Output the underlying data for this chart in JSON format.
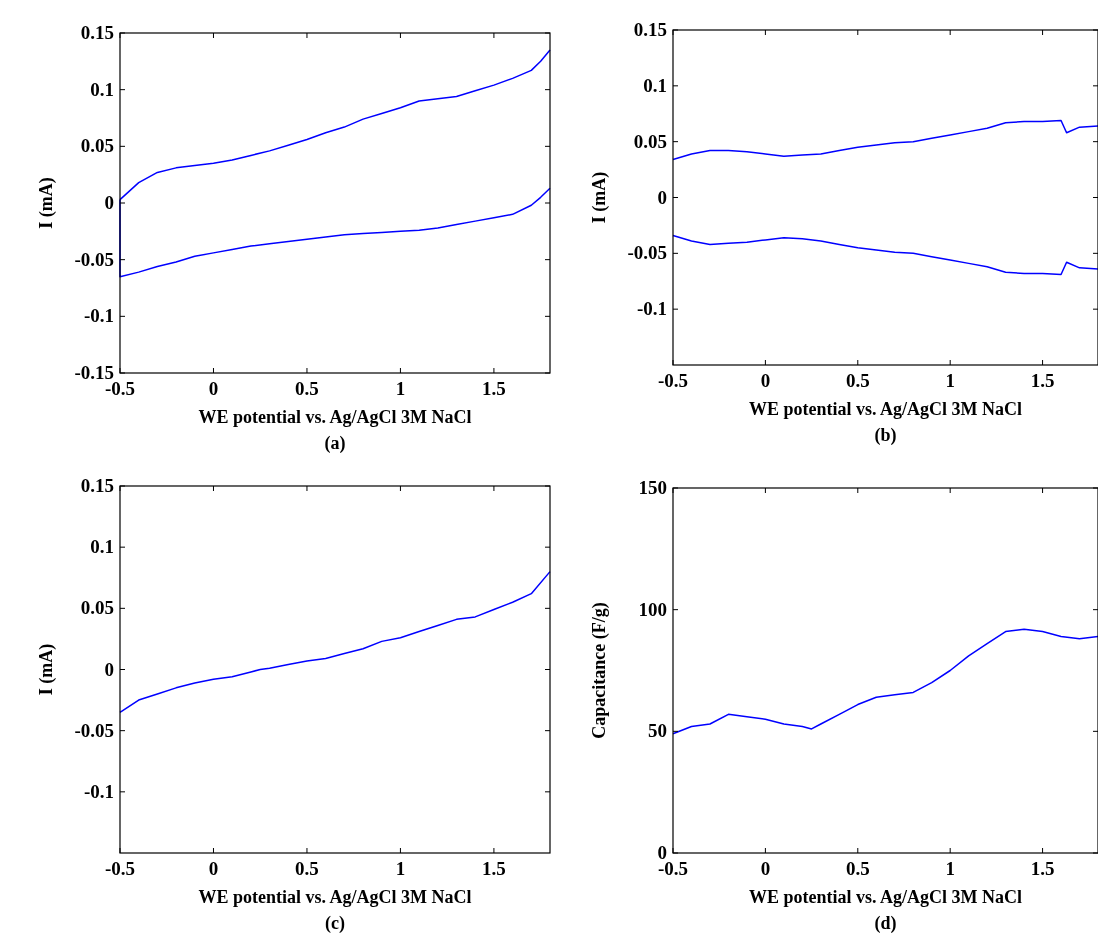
{
  "chart_data": [
    {
      "type": "line",
      "xlabel": "WE potential vs. Ag/AgCl 3M NaCl",
      "ylabel": "I (mA)",
      "annotations": [
        "(a)"
      ],
      "xlim": [
        -0.5,
        1.8
      ],
      "xticks": [
        -0.5,
        0,
        0.5,
        1,
        1.5
      ],
      "ylim": [
        -0.15,
        0.15
      ],
      "yticks": [
        -0.15,
        -0.1,
        -0.05,
        0,
        0.05,
        0.1,
        0.15
      ],
      "grid": false,
      "series": [
        {
          "color": "#0000ff",
          "x": [
            -0.5,
            -0.4,
            -0.3,
            -0.2,
            -0.1,
            0,
            0.1,
            0.2,
            0.3,
            0.4,
            0.5,
            0.6,
            0.7,
            0.8,
            0.9,
            1.0,
            1.1,
            1.2,
            1.3,
            1.4,
            1.5,
            1.6,
            1.7,
            1.75,
            1.8
          ],
          "values": [
            0.003,
            0.018,
            0.027,
            0.031,
            0.033,
            0.035,
            0.038,
            0.042,
            0.046,
            0.051,
            0.056,
            0.062,
            0.067,
            0.074,
            0.079,
            0.084,
            0.09,
            0.092,
            0.094,
            0.099,
            0.104,
            0.11,
            0.117,
            0.125,
            0.135
          ]
        },
        {
          "color": "#0000ff",
          "x": [
            -0.5,
            -0.5,
            -0.4,
            -0.3,
            -0.2,
            -0.1,
            0,
            0.1,
            0.2,
            0.3,
            0.4,
            0.5,
            0.6,
            0.7,
            0.8,
            0.9,
            1.0,
            1.1,
            1.2,
            1.3,
            1.4,
            1.5,
            1.6,
            1.7,
            1.75,
            1.8
          ],
          "values": [
            0.003,
            -0.065,
            -0.061,
            -0.056,
            -0.052,
            -0.047,
            -0.044,
            -0.041,
            -0.038,
            -0.036,
            -0.034,
            -0.032,
            -0.03,
            -0.028,
            -0.027,
            -0.026,
            -0.025,
            -0.024,
            -0.022,
            -0.019,
            -0.016,
            -0.013,
            -0.01,
            -0.002,
            0.005,
            0.013
          ]
        }
      ]
    },
    {
      "type": "line",
      "xlabel": "WE potential vs. Ag/AgCl 3M NaCl",
      "ylabel": "I (mA)",
      "annotations": [
        "(b)"
      ],
      "xlim": [
        -0.5,
        1.8
      ],
      "xticks": [
        -0.5,
        0,
        0.5,
        1,
        1.5
      ],
      "ylim": [
        -0.15,
        0.15
      ],
      "yticks": [
        -0.1,
        -0.05,
        0,
        0.05,
        0.1,
        0.15
      ],
      "grid": false,
      "series": [
        {
          "color": "#0000ff",
          "x": [
            -0.5,
            -0.4,
            -0.3,
            -0.2,
            -0.1,
            0,
            0.1,
            0.2,
            0.3,
            0.4,
            0.5,
            0.6,
            0.7,
            0.8,
            0.9,
            1.0,
            1.1,
            1.2,
            1.3,
            1.4,
            1.5,
            1.6,
            1.63,
            1.7,
            1.8
          ],
          "values": [
            0.034,
            0.039,
            0.042,
            0.042,
            0.041,
            0.039,
            0.037,
            0.038,
            0.039,
            0.042,
            0.045,
            0.047,
            0.049,
            0.05,
            0.053,
            0.056,
            0.059,
            0.062,
            0.067,
            0.068,
            0.068,
            0.069,
            0.058,
            0.063,
            0.064
          ]
        },
        {
          "color": "#0000ff",
          "x": [
            -0.5,
            -0.4,
            -0.3,
            -0.2,
            -0.1,
            0,
            0.1,
            0.2,
            0.3,
            0.4,
            0.5,
            0.6,
            0.7,
            0.8,
            0.9,
            1.0,
            1.1,
            1.2,
            1.3,
            1.4,
            1.5,
            1.6,
            1.63,
            1.7,
            1.8
          ],
          "values": [
            -0.034,
            -0.039,
            -0.042,
            -0.041,
            -0.04,
            -0.038,
            -0.036,
            -0.037,
            -0.039,
            -0.042,
            -0.045,
            -0.047,
            -0.049,
            -0.05,
            -0.053,
            -0.056,
            -0.059,
            -0.062,
            -0.067,
            -0.068,
            -0.068,
            -0.069,
            -0.058,
            -0.063,
            -0.064
          ]
        }
      ]
    },
    {
      "type": "line",
      "xlabel": "WE potential vs. Ag/AgCl 3M NaCl",
      "ylabel": "I (mA)",
      "annotations": [
        "(c)"
      ],
      "xlim": [
        -0.5,
        1.8
      ],
      "xticks": [
        -0.5,
        0,
        0.5,
        1,
        1.5
      ],
      "ylim": [
        -0.15,
        0.15
      ],
      "yticks": [
        -0.1,
        -0.05,
        0,
        0.05,
        0.1,
        0.15
      ],
      "grid": false,
      "series": [
        {
          "color": "#0000ff",
          "x": [
            -0.5,
            -0.4,
            -0.3,
            -0.2,
            -0.1,
            0,
            0.1,
            0.2,
            0.25,
            0.3,
            0.4,
            0.5,
            0.6,
            0.7,
            0.8,
            0.9,
            1.0,
            1.1,
            1.2,
            1.3,
            1.4,
            1.5,
            1.6,
            1.7,
            1.8
          ],
          "values": [
            -0.035,
            -0.025,
            -0.02,
            -0.015,
            -0.011,
            -0.008,
            -0.006,
            -0.002,
            0.0,
            0.001,
            0.004,
            0.007,
            0.009,
            0.013,
            0.017,
            0.023,
            0.026,
            0.031,
            0.036,
            0.041,
            0.043,
            0.049,
            0.055,
            0.062,
            0.08
          ]
        }
      ]
    },
    {
      "type": "line",
      "xlabel": "WE potential vs. Ag/AgCl 3M NaCl",
      "ylabel": "Capacitance (F/g)",
      "annotations": [
        "(d)"
      ],
      "xlim": [
        -0.5,
        1.8
      ],
      "xticks": [
        -0.5,
        0,
        0.5,
        1,
        1.5
      ],
      "ylim": [
        0,
        150
      ],
      "yticks": [
        0,
        50,
        100,
        150
      ],
      "grid": false,
      "series": [
        {
          "color": "#0000ff",
          "x": [
            -0.5,
            -0.4,
            -0.3,
            -0.2,
            -0.1,
            0,
            0.1,
            0.2,
            0.25,
            0.3,
            0.4,
            0.5,
            0.6,
            0.7,
            0.8,
            0.9,
            1.0,
            1.1,
            1.2,
            1.3,
            1.4,
            1.5,
            1.6,
            1.7,
            1.8
          ],
          "values": [
            49,
            52,
            53,
            57,
            56,
            55,
            53,
            52,
            51,
            53,
            57,
            61,
            64,
            65,
            66,
            70,
            75,
            81,
            86,
            91,
            92,
            91,
            89,
            88,
            89
          ]
        }
      ]
    }
  ]
}
